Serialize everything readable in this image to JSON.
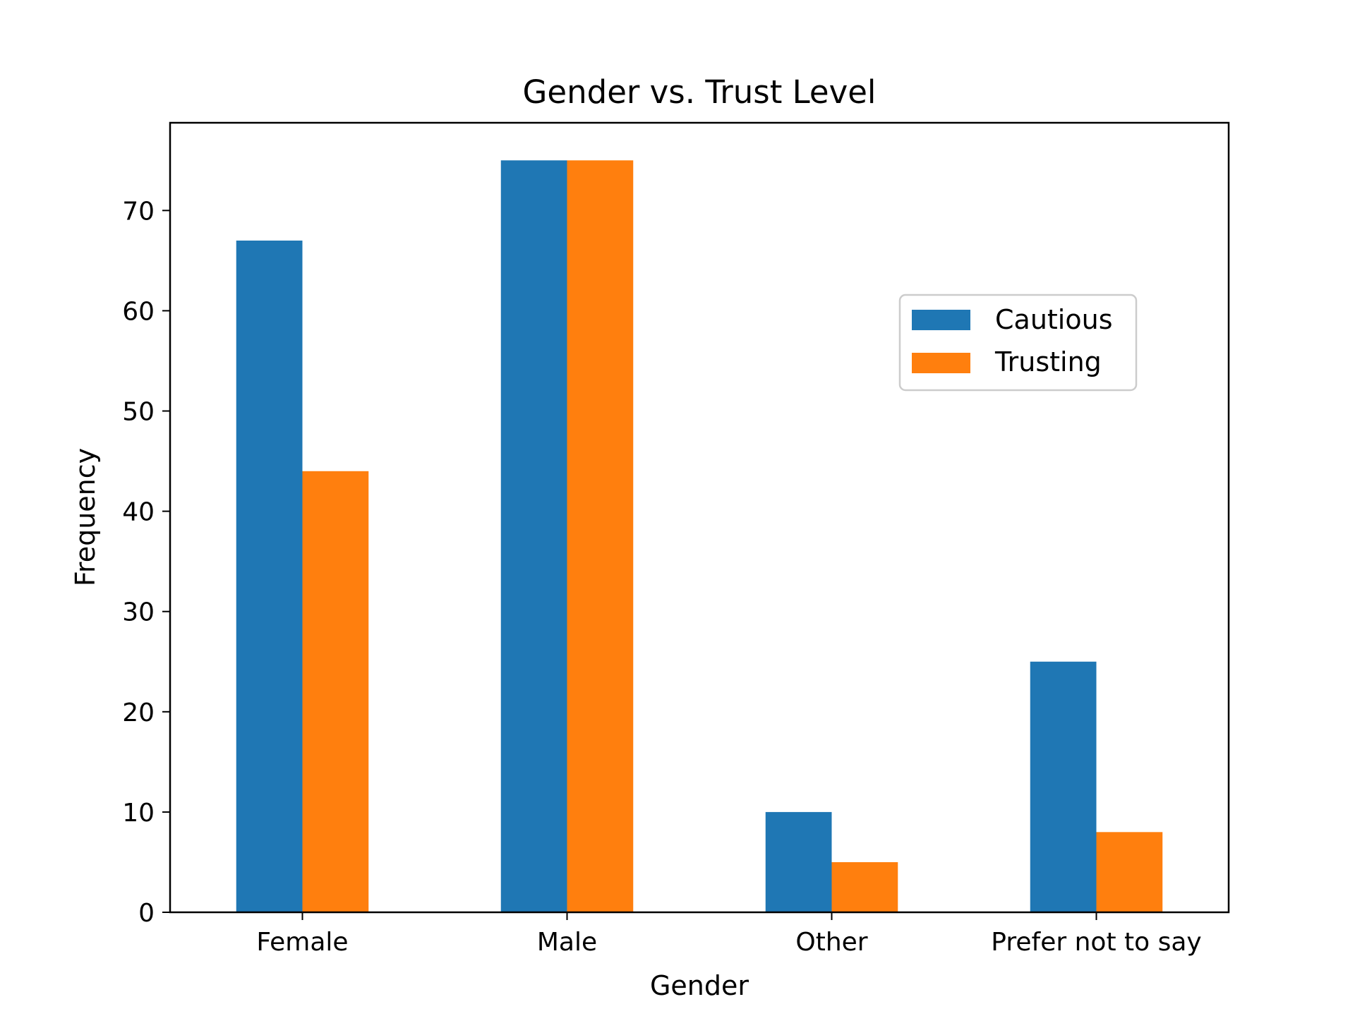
{
  "chart_data": {
    "type": "bar",
    "title": "Gender vs. Trust Level",
    "xlabel": "Gender",
    "ylabel": "Frequency",
    "categories": [
      "Female",
      "Male",
      "Other",
      "Prefer not to say"
    ],
    "series": [
      {
        "name": "Cautious",
        "values": [
          67,
          75,
          10,
          25
        ],
        "color": "#1f77b4"
      },
      {
        "name": "Trusting",
        "values": [
          44,
          75,
          5,
          8
        ],
        "color": "#ff7f0e"
      }
    ],
    "ylim": [
      0,
      78.75
    ],
    "yticks": [
      0,
      10,
      20,
      30,
      40,
      50,
      60,
      70
    ],
    "grid": false,
    "legend_position": "upper-right"
  }
}
